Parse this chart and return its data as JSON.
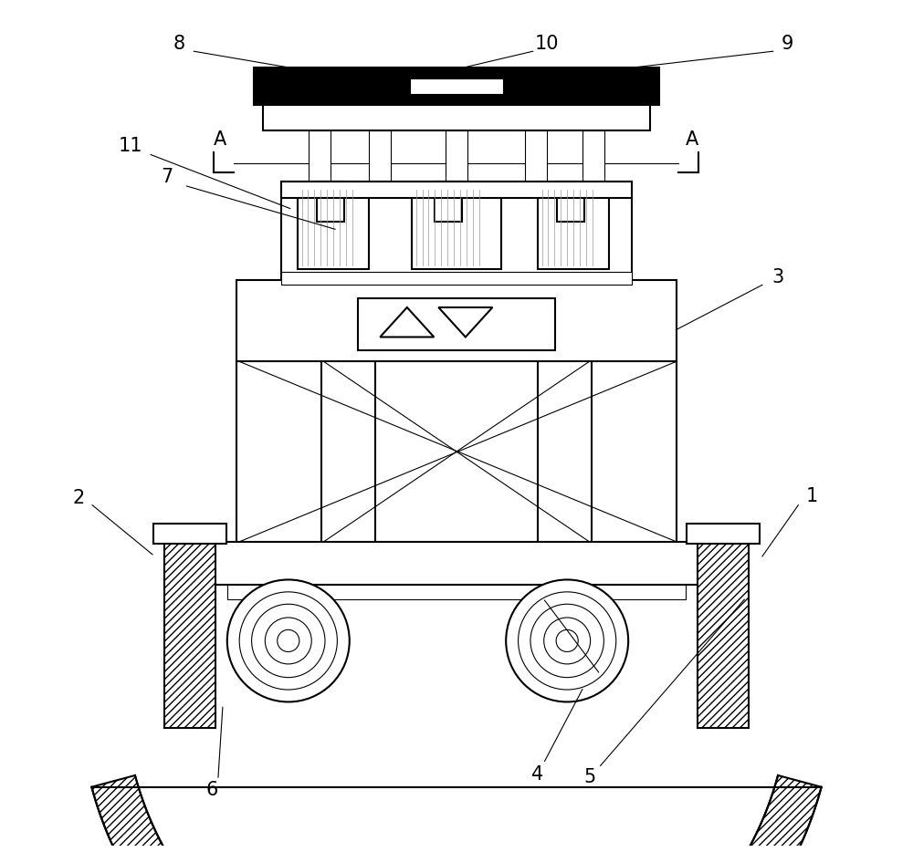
{
  "bg_color": "#ffffff",
  "line_color": "#000000",
  "lw": 1.5,
  "lw_thin": 0.8,
  "figsize": [
    10.0,
    9.34
  ],
  "dpi": 100,
  "label_fontsize": 15
}
